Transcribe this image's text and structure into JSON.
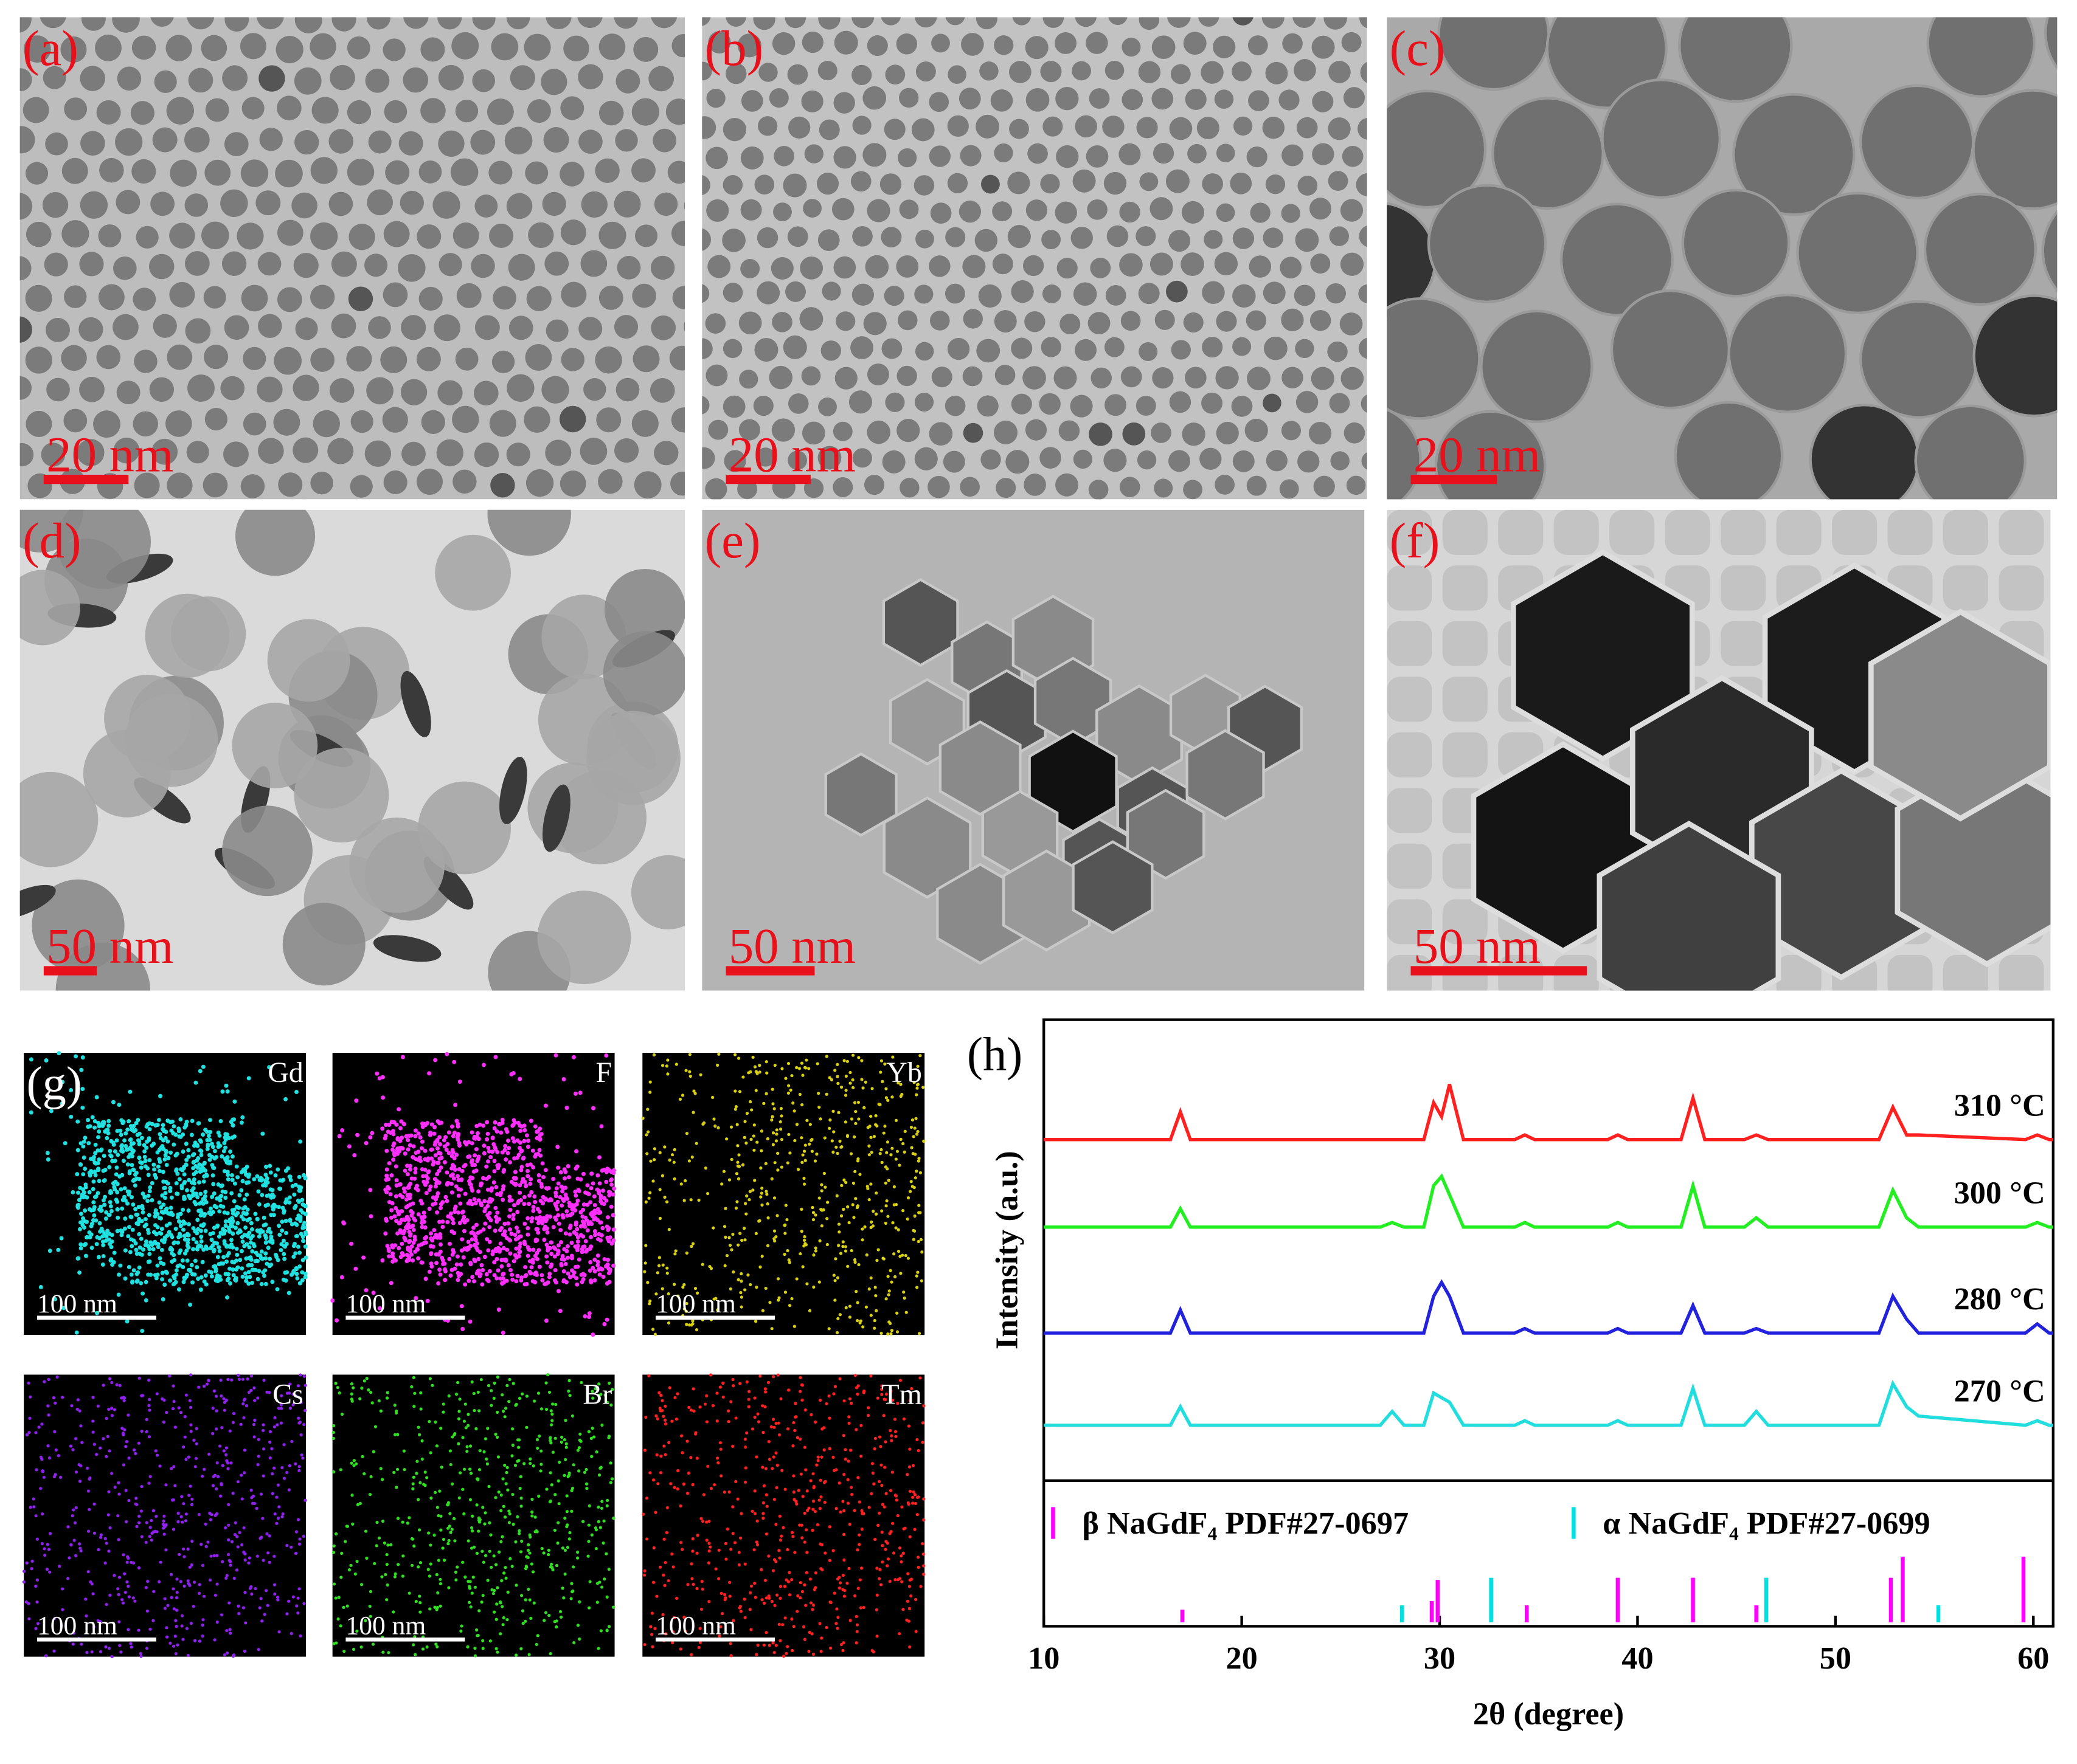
{
  "panels": [
    {
      "label": "(a)",
      "scale_bar": "20 nm"
    },
    {
      "label": "(b)",
      "scale_bar": "20 nm"
    },
    {
      "label": "(c)",
      "scale_bar": "20 nm"
    },
    {
      "label": "(d)",
      "scale_bar": "50 nm"
    },
    {
      "label": "(e)",
      "scale_bar": "50 nm"
    },
    {
      "label": "(f)",
      "scale_bar": "50 nm"
    }
  ],
  "eds": {
    "label": "(g)",
    "maps": [
      {
        "element": "Gd",
        "scale_bar": "100 nm"
      },
      {
        "element": "F",
        "scale_bar": "100 nm"
      },
      {
        "element": "Yb",
        "scale_bar": "100 nm"
      },
      {
        "element": "Cs",
        "scale_bar": "100 nm"
      },
      {
        "element": "Br",
        "scale_bar": "100 nm"
      },
      {
        "element": "Tm",
        "scale_bar": "100 nm"
      }
    ]
  },
  "chart_data": {
    "type": "line",
    "title": "(h)",
    "x_label": "2θ (degree)",
    "y_label": "Intensity (a.u.)",
    "x": [
      10,
      16.4,
      16.9,
      17.4,
      27.0,
      27.6,
      28.2,
      29.2,
      29.7,
      30.1,
      30.5,
      31.2,
      33.8,
      34.3,
      34.8,
      38.5,
      39.0,
      39.5,
      42.2,
      42.8,
      43.4,
      45.4,
      46.0,
      46.6,
      52.2,
      52.9,
      53.6,
      54.2,
      59.6,
      60.2,
      60.8,
      61
    ],
    "xlim": [
      10,
      61
    ],
    "xticks": [
      10,
      20,
      30,
      40,
      50,
      60
    ],
    "ylim": [
      0,
      100
    ],
    "series": [
      {
        "name": "310 °C",
        "color": "#ff2020",
        "values": [
          74,
          74,
          80,
          74,
          74,
          74,
          74,
          74,
          82,
          79,
          86,
          74,
          74,
          75,
          74,
          74,
          75,
          74,
          74,
          83,
          74,
          74,
          75,
          74,
          74,
          81,
          75,
          75,
          74,
          75,
          74,
          74
        ]
      },
      {
        "name": "300 °C",
        "color": "#22ee22",
        "values": [
          55,
          55,
          59,
          55,
          55,
          56,
          55,
          55,
          64,
          66,
          62,
          55,
          55,
          56,
          55,
          55,
          56,
          55,
          55,
          64,
          55,
          55,
          57,
          55,
          55,
          63,
          57,
          55,
          55,
          56,
          55,
          55
        ]
      },
      {
        "name": "280 °C",
        "color": "#2222dd",
        "values": [
          32,
          32,
          37,
          32,
          32,
          32,
          32,
          32,
          40,
          43,
          40,
          32,
          32,
          33,
          32,
          32,
          33,
          32,
          32,
          38,
          32,
          32,
          33,
          32,
          32,
          40,
          35,
          32,
          32,
          34,
          32,
          32
        ]
      },
      {
        "name": "270 °C",
        "color": "#22dddd",
        "values": [
          12,
          12,
          16,
          12,
          12,
          15,
          12,
          12,
          19,
          18,
          17,
          12,
          12,
          13,
          12,
          12,
          13,
          12,
          12,
          20,
          12,
          12,
          15,
          12,
          12,
          21,
          16,
          14,
          12,
          13,
          12,
          12
        ]
      }
    ],
    "references": {
      "ylim": [
        0,
        100
      ],
      "series": [
        {
          "name": "β NaGdF₄ PDF#27-0697",
          "color": "#ff00ff",
          "positions": [
            17.0,
            29.6,
            29.9,
            34.4,
            39.0,
            42.8,
            46.0,
            52.8,
            53.4,
            59.5
          ],
          "values": [
            12,
            20,
            40,
            16,
            42,
            42,
            16,
            42,
            62,
            62
          ]
        },
        {
          "name": "α NaGdF₄ PDF#27-0699",
          "color": "#00e0e0",
          "positions": [
            28.1,
            32.6,
            46.5,
            55.2
          ],
          "values": [
            16,
            42,
            42,
            16
          ]
        }
      ]
    }
  }
}
